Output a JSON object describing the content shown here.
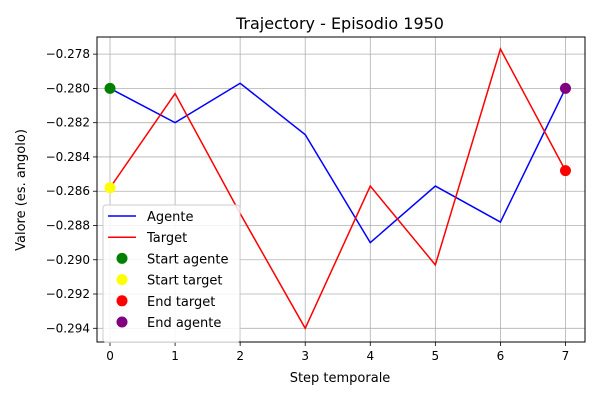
{
  "chart_data": {
    "type": "line",
    "title": "Trajectory - Episodio 1950",
    "xlabel": "Step temporale",
    "ylabel": "Valore (es. angolo)",
    "x": [
      0,
      1,
      2,
      3,
      4,
      5,
      6,
      7
    ],
    "xlim": [
      -0.2,
      7.3
    ],
    "ylim": [
      -0.2948,
      -0.277
    ],
    "xticks": [
      0,
      1,
      2,
      3,
      4,
      5,
      6,
      7
    ],
    "yticks": [
      -0.294,
      -0.292,
      -0.29,
      -0.288,
      -0.286,
      -0.284,
      -0.282,
      -0.28,
      -0.278
    ],
    "ytick_labels": [
      "−0.294",
      "−0.292",
      "−0.290",
      "−0.288",
      "−0.286",
      "−0.284",
      "−0.282",
      "−0.280",
      "−0.278"
    ],
    "grid": true,
    "legend_position": "lower-left",
    "series": [
      {
        "name": "Agente",
        "color": "#0000ff",
        "values": [
          -0.28,
          -0.282,
          -0.2797,
          -0.2827,
          -0.289,
          -0.2857,
          -0.2878,
          -0.28
        ]
      },
      {
        "name": "Target",
        "color": "#ff0000",
        "values": [
          -0.2858,
          -0.2803,
          -0.2873,
          -0.294,
          -0.2857,
          -0.2903,
          -0.2777,
          -0.2848
        ]
      }
    ],
    "markers": [
      {
        "name": "Start agente",
        "color": "#008000",
        "x": 0,
        "y": -0.28
      },
      {
        "name": "Start target",
        "color": "#ffff00",
        "x": 0,
        "y": -0.2858
      },
      {
        "name": "End target",
        "color": "#ff0000",
        "x": 7,
        "y": -0.2848
      },
      {
        "name": "End agente",
        "color": "#800080",
        "x": 7,
        "y": -0.28
      }
    ]
  }
}
